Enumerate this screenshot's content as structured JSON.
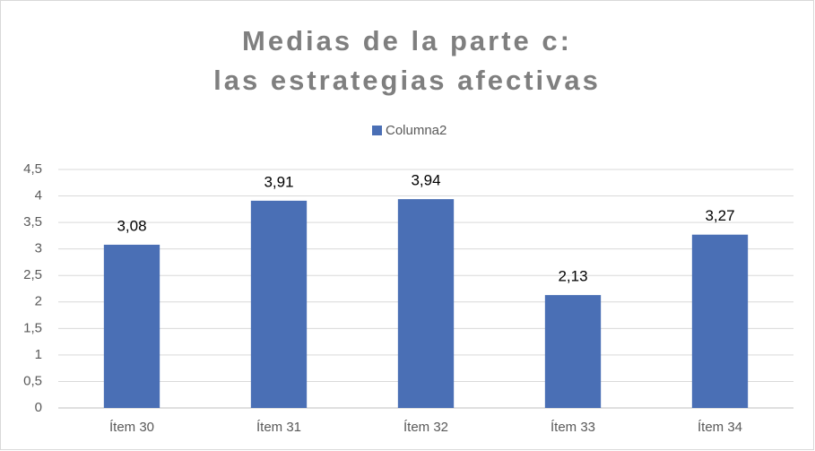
{
  "chart_data": {
    "type": "bar",
    "title": [
      "Medias de la parte c:",
      "las estrategias afectivas"
    ],
    "categories": [
      "Ítem 30",
      "Ítem 31",
      "Ítem 32",
      "Ítem 33",
      "Ítem 34"
    ],
    "series": [
      {
        "name": "Columna2",
        "color": "#4a6fb5",
        "values": [
          3.08,
          3.91,
          3.94,
          2.13,
          3.27
        ],
        "value_labels": [
          "3,08",
          "3,91",
          "3,94",
          "2,13",
          "3,27"
        ]
      }
    ],
    "ylim": [
      0,
      4.5
    ],
    "yticks": [
      0,
      {
        "value": 0.5,
        "label": "0,5"
      },
      1,
      {
        "value": 1.5,
        "label": "1,5"
      },
      2,
      {
        "value": 2.5,
        "label": "2,5"
      },
      3,
      {
        "value": 3.5,
        "label": "3,5"
      },
      4,
      {
        "value": 4.5,
        "label": "4,5"
      }
    ],
    "grid": true,
    "legend": "top"
  }
}
